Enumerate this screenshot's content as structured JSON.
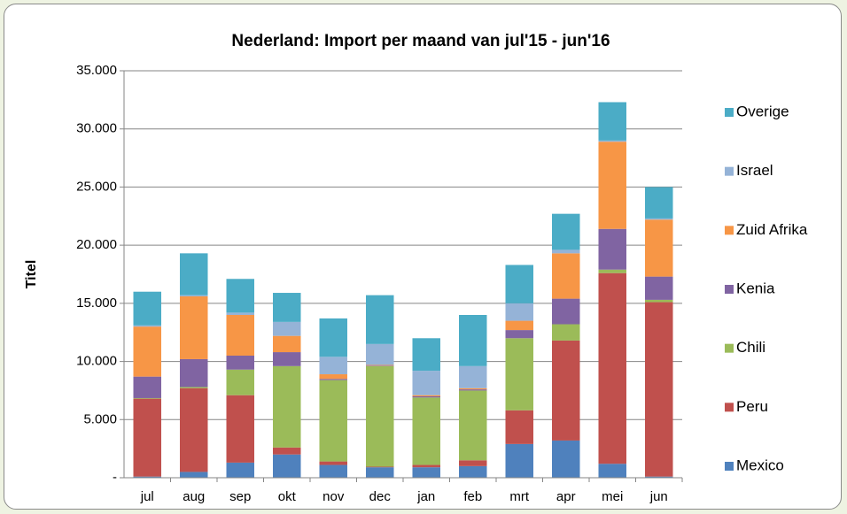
{
  "chart_data": {
    "type": "bar",
    "stacked": true,
    "title": "Nederland: Import per maand van jul'15 - jun'16",
    "ylabel": "Titel",
    "categories": [
      "jul",
      "aug",
      "sep",
      "okt",
      "nov",
      "dec",
      "jan",
      "feb",
      "mrt",
      "apr",
      "mei",
      "jun"
    ],
    "series": [
      {
        "name": "Mexico",
        "color": "#4f81bd",
        "values": [
          100,
          500,
          1300,
          2000,
          1100,
          900,
          900,
          1000,
          2900,
          3200,
          1200,
          100
        ]
      },
      {
        "name": "Peru",
        "color": "#c0504d",
        "values": [
          6700,
          7200,
          5800,
          600,
          300,
          50,
          200,
          500,
          2900,
          8600,
          16400,
          15000
        ]
      },
      {
        "name": "Chili",
        "color": "#9bbb59",
        "values": [
          50,
          100,
          2200,
          7000,
          7000,
          8650,
          5800,
          6000,
          6200,
          1400,
          300,
          200
        ]
      },
      {
        "name": "Kenia",
        "color": "#8064a2",
        "values": [
          1850,
          2400,
          1200,
          1200,
          100,
          50,
          100,
          100,
          700,
          2200,
          3500,
          2000
        ]
      },
      {
        "name": "Zuid Afrika",
        "color": "#f79646",
        "values": [
          4300,
          5400,
          3500,
          1400,
          400,
          50,
          100,
          100,
          800,
          3900,
          7500,
          4900
        ]
      },
      {
        "name": "Israel",
        "color": "#95b3d7",
        "values": [
          100,
          100,
          200,
          1200,
          1500,
          1800,
          2100,
          1900,
          1500,
          300,
          100,
          100
        ]
      },
      {
        "name": "Overige",
        "color": "#4bacc6",
        "values": [
          2900,
          3600,
          2900,
          2500,
          3300,
          4200,
          2800,
          4400,
          3300,
          3100,
          3300,
          2700
        ]
      }
    ],
    "ylim": [
      0,
      35000
    ],
    "yticks": [
      {
        "value": 0,
        "label": "-"
      },
      {
        "value": 5000,
        "label": "5.000"
      },
      {
        "value": 10000,
        "label": "10.000"
      },
      {
        "value": 15000,
        "label": "15.000"
      },
      {
        "value": 20000,
        "label": "20.000"
      },
      {
        "value": 25000,
        "label": "25.000"
      },
      {
        "value": 30000,
        "label": "30.000"
      },
      {
        "value": 35000,
        "label": "35.000"
      }
    ],
    "grid": true,
    "legend": "right"
  }
}
